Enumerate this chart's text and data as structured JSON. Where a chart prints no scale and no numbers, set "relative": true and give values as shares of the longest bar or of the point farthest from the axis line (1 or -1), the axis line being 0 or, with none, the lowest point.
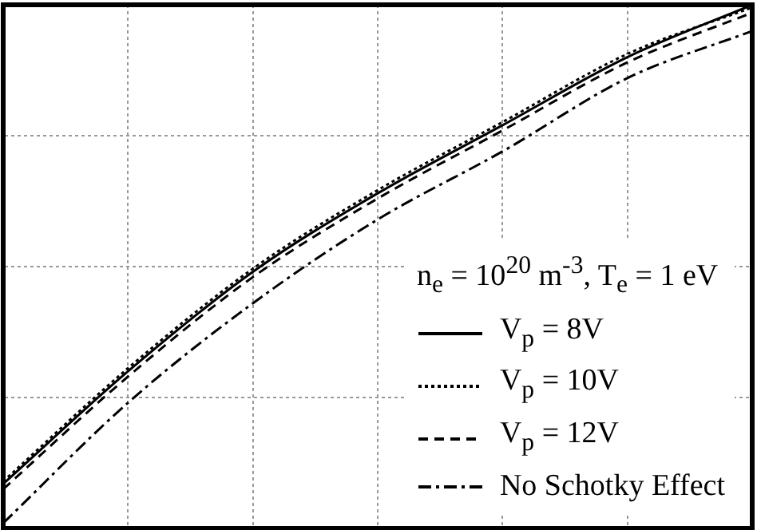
{
  "chart_data": {
    "type": "line",
    "relative": true,
    "legend_title": "n$_{e}$ = 10$^{20}$ m$^{-3}$, T$_{e}$ = 1 eV",
    "legend": "bottom right",
    "grid": true,
    "categories": [
      null,
      null,
      null,
      null,
      null,
      null,
      null
    ],
    "series": [
      {
        "name": "V$_{p}$ = 8V",
        "color": "#000000",
        "line_style": "solid",
        "values": [
          0.085,
          0.3,
          0.49,
          0.64,
          0.77,
          0.9,
          1.0
        ]
      },
      {
        "name": "V$_{p}$ = 10V",
        "color": "#000000",
        "line_style": "dotted",
        "values": [
          0.09,
          0.306,
          0.496,
          0.646,
          0.776,
          0.906,
          0.995
        ]
      },
      {
        "name": "V$_{p}$ = 12V",
        "color": "#000000",
        "line_style": "dashed",
        "values": [
          0.075,
          0.29,
          0.48,
          0.63,
          0.76,
          0.89,
          0.985
        ]
      },
      {
        "name": "No Schotky Effect",
        "color": "#000000",
        "line_style": "dashdot",
        "values": [
          0.01,
          0.24,
          0.43,
          0.59,
          0.72,
          0.86,
          0.95
        ]
      }
    ]
  }
}
